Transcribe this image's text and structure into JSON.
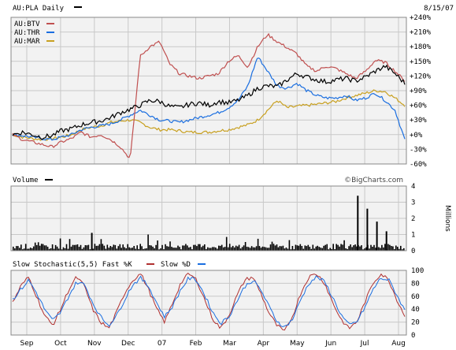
{
  "header": {
    "title": "AU:PLA Daily",
    "date": "8/15/07"
  },
  "legend": [
    {
      "label": "AU:BTV",
      "color": "#c05050"
    },
    {
      "label": "AU:THR",
      "color": "#1a6ee0"
    },
    {
      "label": "AU:MAR",
      "color": "#c8a020"
    }
  ],
  "volume_panel": {
    "title": "Volume",
    "unit": "Millions",
    "watermark": "©BigCharts.com"
  },
  "stoch_panel": {
    "title_prefix": "Slow Stochastic(5,5) Fast %K",
    "title_mid": "Slow %D"
  },
  "colors": {
    "pla": "#000000",
    "btv": "#c05050",
    "thr": "#1a6ee0",
    "mar": "#c8a020",
    "panel_bg": "#f2f2f2",
    "grid": "#c8c8c8",
    "fastk": "#b03030",
    "slowd": "#1a6ee0"
  },
  "chart_data": [
    {
      "type": "line",
      "name": "price-comparison",
      "x_labels": [
        "Sep",
        "Oct",
        "Nov",
        "Dec",
        "07",
        "Feb",
        "Mar",
        "Apr",
        "May",
        "Jun",
        "Jul",
        "Aug"
      ],
      "yticks": [
        "+240%",
        "+210%",
        "+180%",
        "+150%",
        "+120%",
        "+90%",
        "+60%",
        "+30%",
        "+0%",
        "-30%",
        "-60%"
      ],
      "ylim": [
        -60,
        240
      ],
      "series": [
        {
          "name": "AU:PLA",
          "color": "#000000",
          "values": [
            0,
            5,
            0,
            -5,
            -2,
            8,
            12,
            20,
            25,
            28,
            35,
            45,
            52,
            60,
            70,
            68,
            58,
            55,
            62,
            65,
            60,
            68,
            65,
            70,
            80,
            95,
            100,
            98,
            112,
            125,
            118,
            112,
            108,
            112,
            115,
            110,
            118,
            130,
            140,
            125,
            105
          ]
        },
        {
          "name": "AU:BTV",
          "color": "#c05050",
          "values": [
            0,
            -10,
            -15,
            -20,
            -25,
            -15,
            -8,
            5,
            -5,
            0,
            -10,
            -25,
            -50,
            160,
            180,
            190,
            145,
            125,
            120,
            115,
            120,
            125,
            150,
            162,
            138,
            180,
            205,
            190,
            178,
            165,
            140,
            130,
            140,
            135,
            125,
            115,
            130,
            152,
            148,
            130,
            110
          ]
        },
        {
          "name": "AU:THR",
          "color": "#1a6ee0",
          "values": [
            0,
            -2,
            -5,
            -8,
            -10,
            -5,
            0,
            10,
            15,
            18,
            22,
            30,
            40,
            50,
            40,
            30,
            28,
            25,
            30,
            35,
            40,
            45,
            55,
            70,
            100,
            160,
            130,
            100,
            95,
            105,
            90,
            80,
            75,
            75,
            80,
            70,
            75,
            85,
            70,
            50,
            -10
          ]
        },
        {
          "name": "AU:MAR",
          "color": "#c8a020",
          "values": [
            0,
            -5,
            -8,
            -10,
            -8,
            -5,
            0,
            10,
            15,
            18,
            25,
            28,
            30,
            25,
            15,
            10,
            10,
            8,
            5,
            5,
            5,
            8,
            10,
            15,
            20,
            30,
            50,
            70,
            55,
            58,
            60,
            62,
            65,
            68,
            75,
            80,
            85,
            90,
            88,
            75,
            60
          ]
        }
      ]
    },
    {
      "type": "bar",
      "name": "volume",
      "ylabel": "Millions",
      "yticks": [
        "4",
        "3",
        "2",
        "1",
        "0"
      ],
      "ylim": [
        0,
        4
      ],
      "spikes": [
        {
          "index": 36,
          "value": 3.4
        },
        {
          "index": 37,
          "value": 2.6
        },
        {
          "index": 38,
          "value": 1.8
        },
        {
          "index": 39,
          "value": 1.2
        }
      ]
    },
    {
      "type": "line",
      "name": "slow-stochastic",
      "yticks": [
        "100",
        "80",
        "60",
        "40",
        "20",
        "0"
      ],
      "ylim": [
        0,
        100
      ],
      "series": [
        {
          "name": "Fast %K",
          "color": "#b03030",
          "values": [
            50,
            75,
            90,
            60,
            30,
            15,
            40,
            70,
            90,
            75,
            40,
            20,
            10,
            35,
            65,
            85,
            95,
            70,
            40,
            20,
            50,
            80,
            95,
            85,
            55,
            25,
            10,
            30,
            60,
            85,
            90,
            65,
            35,
            15,
            5,
            30,
            65,
            90,
            95,
            80,
            50,
            25,
            10,
            20,
            50,
            80,
            95,
            85,
            55,
            30
          ]
        },
        {
          "name": "Slow %D",
          "color": "#1a6ee0",
          "values": [
            55,
            70,
            85,
            65,
            40,
            22,
            35,
            60,
            82,
            78,
            50,
            28,
            15,
            30,
            55,
            78,
            88,
            75,
            50,
            28,
            45,
            70,
            88,
            85,
            62,
            35,
            18,
            28,
            52,
            75,
            85,
            70,
            45,
            22,
            12,
            25,
            55,
            80,
            90,
            82,
            58,
            32,
            15,
            20,
            42,
            70,
            88,
            85,
            62,
            38
          ]
        }
      ]
    }
  ]
}
